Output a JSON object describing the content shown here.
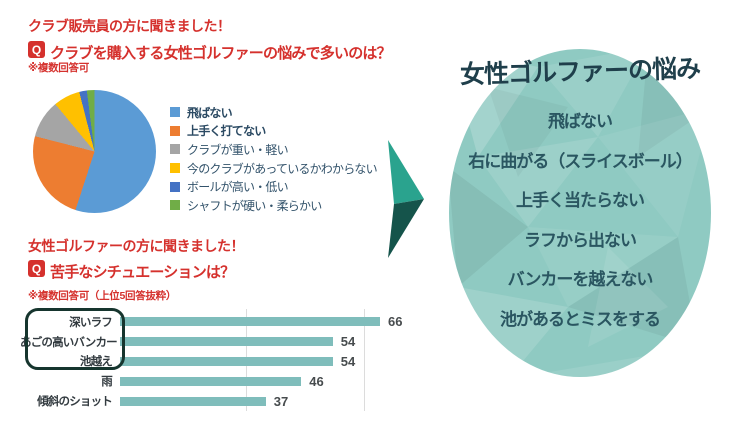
{
  "sections": {
    "club": {
      "intro": "クラブ販売員の方に聞きました！",
      "q": "Q",
      "question": "クラブを購入する女性ゴルファーの悩みで多いのは？",
      "note": "※複数回答可"
    },
    "golfer": {
      "intro": "女性ゴルファーの方に聞きました！",
      "q": "Q",
      "question": "苦手なシチュエーションは？",
      "note": "※複数回答可（上位5回答抜粋）"
    }
  },
  "chart_data": [
    {
      "type": "pie",
      "question": "クラブを購入する女性ゴルファーの悩みで多いのは？",
      "categories": [
        "飛ばない",
        "上手く打てない",
        "クラブが重い・軽い",
        "今のクラブがあっているかわからない",
        "ボールが高い・低い",
        "シャフトが硬い・柔らかい"
      ],
      "values": [
        55,
        24,
        10,
        7,
        2,
        2
      ],
      "values_note": "percent shares estimated from slice angles; no numeric labels shown in image",
      "colors": [
        "#5B9BD5",
        "#ED7D31",
        "#A5A5A5",
        "#FFC000",
        "#4472C4",
        "#70AD47"
      ],
      "legend_position": "right",
      "legend_bold_indices": [
        0,
        1
      ]
    },
    {
      "type": "bar",
      "orientation": "horizontal",
      "question": "苦手なシチュエーションは？",
      "categories": [
        "深いラフ",
        "あごの高いバンカー",
        "池越え",
        "雨",
        "傾斜のショット"
      ],
      "values": [
        66,
        54,
        54,
        46,
        37
      ],
      "xlim": [
        0,
        70
      ],
      "gridlines": [
        30,
        60
      ],
      "bar_color": "#7FBDBB",
      "highlighted_categories": [
        "深いラフ",
        "あごの高いバンカー",
        "池越え"
      ]
    }
  ],
  "arrow": {
    "light_color": "#2AA38E",
    "dark_color": "#15544B"
  },
  "result": {
    "title": "女性ゴルファーの悩み",
    "items": [
      "飛ばない",
      "右に曲がる（スライスボール）",
      "上手く当たらない",
      "ラフから出ない",
      "バンカーを越えない",
      "池があるとミスをする"
    ],
    "bubble_base_color": "#8FCAC2",
    "bubble_facet_colors": [
      "#9ED3CA",
      "#A6D8CF",
      "#7FC0B7",
      "#B2DDD5",
      "#86C5BC"
    ],
    "title_color": "#1F3F4B",
    "item_text_color": "#2A5661"
  },
  "colors": {
    "background": "#FFFFFF",
    "heading_red": "#D5312D",
    "q_badge_bg": "#D5312D",
    "q_badge_text": "#FFFFFF",
    "highlight_box_border": "#16352E",
    "bar_value_text": "#474C4E",
    "gridline": "#DCDCDC"
  }
}
